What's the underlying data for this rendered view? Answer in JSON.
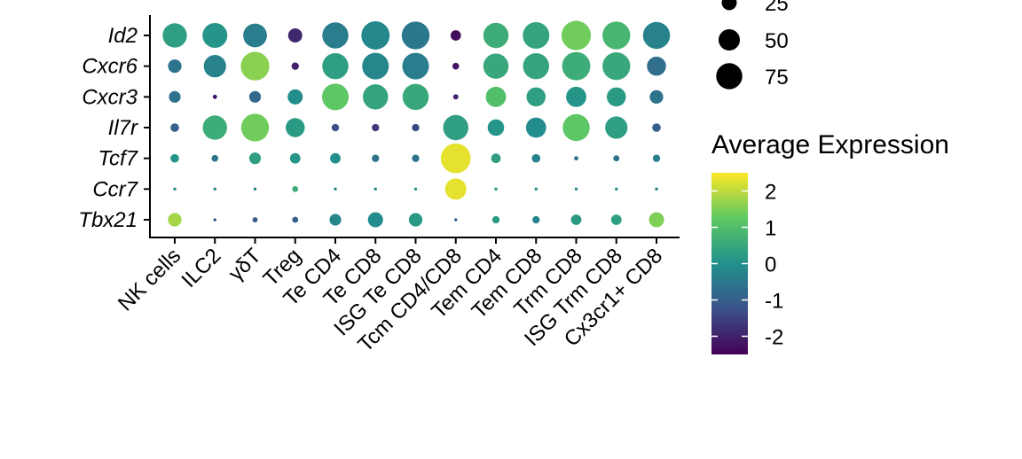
{
  "chart_data": {
    "type": "dotplot",
    "genes": [
      "Id2",
      "Cxcr6",
      "Cxcr3",
      "Il7r",
      "Tcf7",
      "Ccr7",
      "Tbx21"
    ],
    "cell_types": [
      "NK cells",
      "ILC2",
      "γδT",
      "Treg",
      "Te CD4",
      "Te CD8",
      "ISG Te CD8",
      "Tcm CD4/CD8",
      "Tem CD4",
      "Tem CD8",
      "Trm CD8",
      "ISG Trm CD8",
      "Cx3cr1+ CD8"
    ],
    "points": [
      {
        "gene": "Id2",
        "values": [
          {
            "pct": 65,
            "avg": 0.3
          },
          {
            "pct": 68,
            "avg": 0.1
          },
          {
            "pct": 62,
            "avg": -0.4
          },
          {
            "pct": 22,
            "avg": -1.9
          },
          {
            "pct": 75,
            "avg": -0.4
          },
          {
            "pct": 88,
            "avg": -0.2
          },
          {
            "pct": 85,
            "avg": -0.5
          },
          {
            "pct": 12,
            "avg": -2.3
          },
          {
            "pct": 70,
            "avg": 0.6
          },
          {
            "pct": 78,
            "avg": 0.4
          },
          {
            "pct": 95,
            "avg": 1.4
          },
          {
            "pct": 85,
            "avg": 0.8
          },
          {
            "pct": 80,
            "avg": -0.3
          }
        ]
      },
      {
        "gene": "Cxcr6",
        "values": [
          {
            "pct": 20,
            "avg": -0.6
          },
          {
            "pct": 55,
            "avg": -0.3
          },
          {
            "pct": 90,
            "avg": 1.6
          },
          {
            "pct": 6,
            "avg": -2.0
          },
          {
            "pct": 75,
            "avg": 0.3
          },
          {
            "pct": 78,
            "avg": -0.2
          },
          {
            "pct": 78,
            "avg": -0.4
          },
          {
            "pct": 5,
            "avg": -2.2
          },
          {
            "pct": 70,
            "avg": 0.5
          },
          {
            "pct": 75,
            "avg": 0.4
          },
          {
            "pct": 88,
            "avg": 0.6
          },
          {
            "pct": 85,
            "avg": 0.5
          },
          {
            "pct": 40,
            "avg": -0.7
          }
        ]
      },
      {
        "gene": "Cxcr3",
        "values": [
          {
            "pct": 15,
            "avg": -0.6
          },
          {
            "pct": 2,
            "avg": -2.2
          },
          {
            "pct": 15,
            "avg": -0.8
          },
          {
            "pct": 25,
            "avg": -0.1
          },
          {
            "pct": 78,
            "avg": 1.2
          },
          {
            "pct": 70,
            "avg": 0.4
          },
          {
            "pct": 75,
            "avg": 0.5
          },
          {
            "pct": 3,
            "avg": -2.0
          },
          {
            "pct": 45,
            "avg": 1.0
          },
          {
            "pct": 40,
            "avg": 0.3
          },
          {
            "pct": 45,
            "avg": 0.1
          },
          {
            "pct": 40,
            "avg": 0.2
          },
          {
            "pct": 20,
            "avg": -0.6
          }
        ]
      },
      {
        "gene": "Il7r",
        "values": [
          {
            "pct": 8,
            "avg": -1.0
          },
          {
            "pct": 65,
            "avg": 0.6
          },
          {
            "pct": 85,
            "avg": 1.4
          },
          {
            "pct": 40,
            "avg": 0.2
          },
          {
            "pct": 6,
            "avg": -1.3
          },
          {
            "pct": 6,
            "avg": -1.6
          },
          {
            "pct": 6,
            "avg": -1.4
          },
          {
            "pct": 70,
            "avg": 0.3
          },
          {
            "pct": 30,
            "avg": 0.1
          },
          {
            "pct": 45,
            "avg": -0.1
          },
          {
            "pct": 80,
            "avg": 1.2
          },
          {
            "pct": 55,
            "avg": 0.3
          },
          {
            "pct": 8,
            "avg": -1.0
          }
        ]
      },
      {
        "gene": "Tcf7",
        "values": [
          {
            "pct": 8,
            "avg": 0.1
          },
          {
            "pct": 5,
            "avg": -0.6
          },
          {
            "pct": 15,
            "avg": 0.3
          },
          {
            "pct": 12,
            "avg": 0.1
          },
          {
            "pct": 12,
            "avg": -0.1
          },
          {
            "pct": 6,
            "avg": -0.6
          },
          {
            "pct": 6,
            "avg": -0.6
          },
          {
            "pct": 98,
            "avg": 2.3
          },
          {
            "pct": 10,
            "avg": 0.3
          },
          {
            "pct": 8,
            "avg": -0.3
          },
          {
            "pct": 2,
            "avg": -0.7
          },
          {
            "pct": 4,
            "avg": -0.6
          },
          {
            "pct": 6,
            "avg": -0.4
          }
        ]
      },
      {
        "gene": "Ccr7",
        "values": [
          {
            "pct": 1,
            "avg": -0.1
          },
          {
            "pct": 1,
            "avg": -0.2
          },
          {
            "pct": 1,
            "avg": -0.2
          },
          {
            "pct": 4,
            "avg": 0.6
          },
          {
            "pct": 1,
            "avg": -0.1
          },
          {
            "pct": 1,
            "avg": -0.1
          },
          {
            "pct": 1,
            "avg": 0.1
          },
          {
            "pct": 50,
            "avg": 2.3
          },
          {
            "pct": 1,
            "avg": 0.1
          },
          {
            "pct": 1,
            "avg": -0.1
          },
          {
            "pct": 1,
            "avg": -0.2
          },
          {
            "pct": 1,
            "avg": -0.1
          },
          {
            "pct": 1,
            "avg": -0.2
          }
        ]
      },
      {
        "gene": "Tbx21",
        "values": [
          {
            "pct": 20,
            "avg": 1.8
          },
          {
            "pct": 1,
            "avg": -1.3
          },
          {
            "pct": 3,
            "avg": -1.1
          },
          {
            "pct": 4,
            "avg": -1.0
          },
          {
            "pct": 15,
            "avg": -0.2
          },
          {
            "pct": 25,
            "avg": -0.1
          },
          {
            "pct": 20,
            "avg": 0.2
          },
          {
            "pct": 1,
            "avg": -1.0
          },
          {
            "pct": 6,
            "avg": 0.2
          },
          {
            "pct": 6,
            "avg": -0.3
          },
          {
            "pct": 12,
            "avg": 0.2
          },
          {
            "pct": 12,
            "avg": 0.3
          },
          {
            "pct": 25,
            "avg": 1.5
          }
        ]
      }
    ],
    "size_legend": {
      "title": "",
      "values": [
        25,
        50,
        75
      ],
      "labels": [
        "25",
        "50",
        "75"
      ]
    },
    "color_legend": {
      "title": "Average Expression",
      "min": -2.5,
      "max": 2.5,
      "ticks": [
        2,
        1,
        0,
        -1,
        -2
      ],
      "tick_labels": [
        "2",
        "1",
        "0",
        "-1",
        "-2"
      ],
      "colors": [
        "#440154",
        "#3b528b",
        "#21918c",
        "#5ec962",
        "#fde725"
      ]
    }
  }
}
